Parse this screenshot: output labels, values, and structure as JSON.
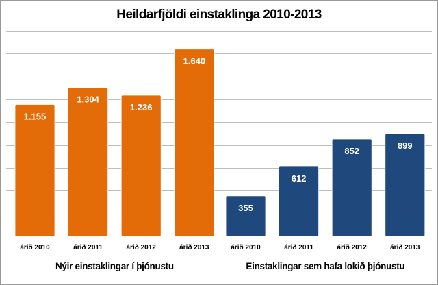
{
  "chart_data": {
    "type": "bar",
    "title": "Heildarfjöldi einstaklinga 2010-2013",
    "categories": [
      "árið 2010",
      "árið 2011",
      "árið 2012",
      "árið 2013"
    ],
    "groups": [
      {
        "name": "Nýir einstaklingar í þjónustu",
        "color": "#e36c09",
        "values": [
          1155,
          1304,
          1236,
          1640
        ],
        "labels": [
          "1.155",
          "1.304",
          "1.236",
          "1.640"
        ]
      },
      {
        "name": "Einstaklingar sem hafa lokið þjónustu",
        "color": "#1f497d",
        "values": [
          355,
          612,
          852,
          899
        ],
        "labels": [
          "355",
          "612",
          "852",
          "899"
        ]
      }
    ],
    "ylim": [
      0,
      1800
    ],
    "grid": true,
    "legend": "none"
  }
}
